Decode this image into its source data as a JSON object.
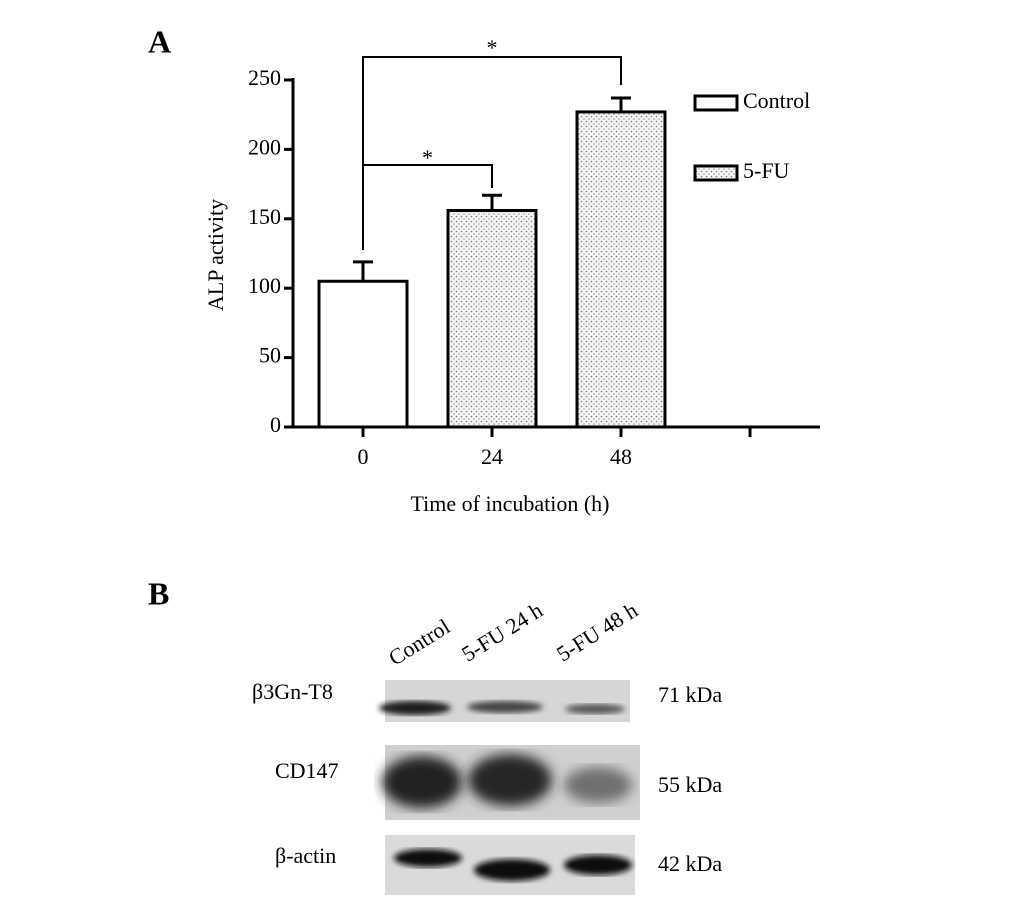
{
  "panel_labels": [
    "A",
    "B"
  ],
  "chart_data": {
    "type": "bar",
    "y_label": "ALP activity",
    "x_label": "Time of incubation (h)",
    "categories": [
      "0",
      "24",
      "48",
      null
    ],
    "series": [
      {
        "name": "Control",
        "color": "#ffffff",
        "hatch": null,
        "values": [
          105,
          null,
          null,
          null
        ],
        "errors": [
          14,
          null,
          null,
          null
        ]
      },
      {
        "name": "5-FU",
        "color": "#e6e6e6",
        "hatch": "dots",
        "values": [
          null,
          156,
          227,
          null
        ],
        "errors": [
          null,
          11,
          10,
          null
        ]
      }
    ],
    "ylim": [
      0,
      250
    ],
    "yticks": [
      0,
      50,
      100,
      150,
      200,
      250
    ],
    "annotations": [
      "*",
      "*"
    ],
    "legend": "right"
  },
  "blot": {
    "lanes": [
      "Control",
      "5-FU 24 h",
      "5-FU 48 h"
    ],
    "rows": [
      {
        "protein": "β3Gn-T8",
        "size": "71 kDa"
      },
      {
        "protein": "CD147",
        "size": "55 kDa"
      },
      {
        "protein": "β-actin",
        "size": "42 kDa"
      }
    ]
  }
}
